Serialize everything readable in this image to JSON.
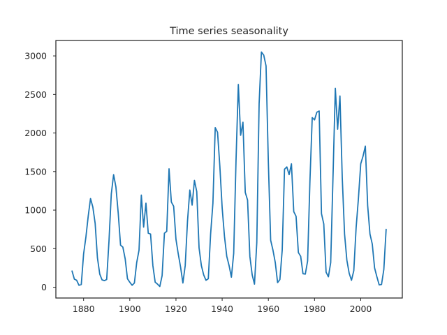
{
  "chart_data": {
    "type": "line",
    "title": "Time series seasonality",
    "xlabel": "",
    "ylabel": "",
    "xlim": [
      1868,
      2018
    ],
    "ylim": [
      -140,
      3200
    ],
    "xticks": [
      1880,
      1900,
      1920,
      1940,
      1960,
      1980,
      2000
    ],
    "yticks": [
      0,
      500,
      1000,
      1500,
      2000,
      2500,
      3000
    ],
    "grid": false,
    "legend": "none",
    "series": [
      {
        "color": "#1f77b4",
        "x": [
          1875,
          1876,
          1877,
          1878,
          1879,
          1880,
          1881,
          1882,
          1883,
          1884,
          1885,
          1886,
          1887,
          1888,
          1889,
          1890,
          1891,
          1892,
          1893,
          1894,
          1895,
          1896,
          1897,
          1898,
          1899,
          1900,
          1901,
          1902,
          1903,
          1904,
          1905,
          1906,
          1907,
          1908,
          1909,
          1910,
          1911,
          1912,
          1913,
          1914,
          1915,
          1916,
          1917,
          1918,
          1919,
          1920,
          1921,
          1922,
          1923,
          1924,
          1925,
          1926,
          1927,
          1928,
          1929,
          1930,
          1931,
          1932,
          1933,
          1934,
          1935,
          1936,
          1937,
          1938,
          1939,
          1940,
          1941,
          1942,
          1943,
          1944,
          1945,
          1946,
          1947,
          1948,
          1949,
          1950,
          1951,
          1952,
          1953,
          1954,
          1955,
          1956,
          1957,
          1958,
          1959,
          1960,
          1961,
          1962,
          1963,
          1964,
          1965,
          1966,
          1967,
          1968,
          1969,
          1970,
          1971,
          1972,
          1973,
          1974,
          1975,
          1976,
          1977,
          1978,
          1979,
          1980,
          1981,
          1982,
          1983,
          1984,
          1985,
          1986,
          1987,
          1988,
          1989,
          1990,
          1991,
          1992,
          1993,
          1994,
          1995,
          1996,
          1997,
          1998,
          1999,
          2000,
          2001,
          2002,
          2003,
          2004,
          2005,
          2006,
          2007,
          2008,
          2009,
          2010,
          2011
        ],
        "values": [
          210,
          105,
          90,
          25,
          35,
          430,
          650,
          920,
          1150,
          1040,
          830,
          380,
          170,
          95,
          85,
          100,
          600,
          1210,
          1460,
          1300,
          960,
          545,
          520,
          370,
          110,
          65,
          25,
          55,
          320,
          480,
          1195,
          780,
          1090,
          700,
          690,
          280,
          65,
          40,
          10,
          150,
          700,
          725,
          1535,
          1105,
          1050,
          620,
          430,
          260,
          55,
          280,
          860,
          1260,
          1065,
          1385,
          1240,
          510,
          280,
          160,
          90,
          110,
          690,
          1090,
          2070,
          2010,
          1570,
          1030,
          660,
          400,
          280,
          130,
          440,
          1640,
          2630,
          1970,
          2140,
          1230,
          1130,
          400,
          160,
          40,
          580,
          2380,
          3050,
          3010,
          2870,
          1620,
          610,
          480,
          320,
          60,
          100,
          480,
          1530,
          1560,
          1460,
          1600,
          980,
          920,
          450,
          400,
          175,
          170,
          340,
          1370,
          2200,
          2170,
          2270,
          2285,
          955,
          820,
          195,
          135,
          320,
          1440,
          2580,
          2050,
          2480,
          1420,
          690,
          350,
          180,
          90,
          215,
          770,
          1150,
          1600,
          1700,
          1830,
          1060,
          690,
          560,
          250,
          135,
          30,
          35,
          230,
          750
        ]
      }
    ]
  }
}
